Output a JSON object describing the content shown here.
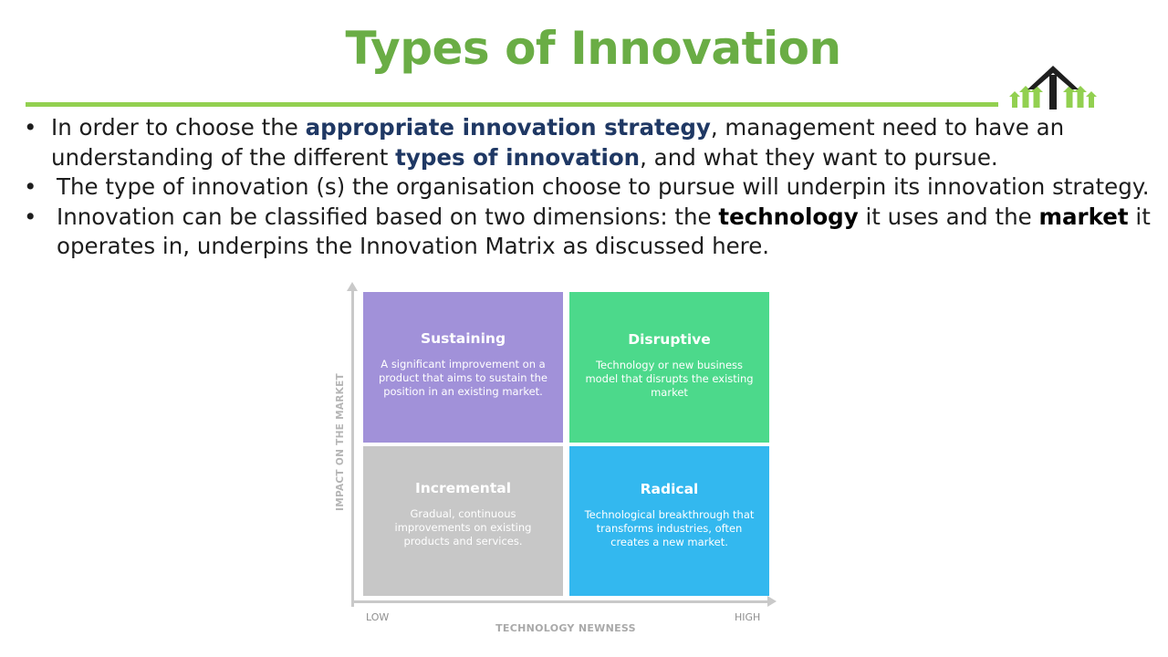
{
  "slide": {
    "title": "Types of Innovation"
  },
  "bullets": [
    {
      "bullet": "•",
      "parts": [
        {
          "text": "In order to choose the "
        },
        {
          "text": "appropriate innovation strategy",
          "style": "blue-bold"
        },
        {
          "text": ", management need to have an understanding of the different "
        },
        {
          "text": "types of innovation",
          "style": "blue-bold"
        },
        {
          "text": ", and what they want to pursue."
        }
      ]
    },
    {
      "bullet": "•",
      "parts": [
        {
          "text": "The type of innovation (s) the organisation choose to pursue will underpin its innovation strategy."
        }
      ]
    },
    {
      "bullet": "•",
      "parts": [
        {
          "text": "Innovation can be classified based on two dimensions: the "
        },
        {
          "text": "technology",
          "style": "black-bold"
        },
        {
          "text": " it uses and the "
        },
        {
          "text": "market",
          "style": "black-bold"
        },
        {
          "text": " it operates in,  underpins the Innovation Matrix as discussed here."
        }
      ]
    }
  ],
  "matrix": {
    "y_axis_label": "IMPACT ON THE MARKET",
    "x_axis_label": "TECHNOLOGY NEWNESS",
    "x_low": "LOW",
    "x_high": "HIGH",
    "cells": [
      {
        "title": "Sustaining",
        "description": "A significant improvement on a product that aims to sustain the position in an existing market.",
        "color": "#a191d9"
      },
      {
        "title": "Disruptive",
        "description": "Technology or new business model that disrupts the existing market",
        "color": "#4cd98b"
      },
      {
        "title": "Incremental",
        "description": "Gradual, continuous improvements on existing products and services.",
        "color": "#c7c7c7"
      },
      {
        "title": "Radical",
        "description": "Technological breakthrough that transforms industries, often creates a new market.",
        "color": "#33b8ef"
      }
    ]
  },
  "colors": {
    "title_green": "#6aad45",
    "rule_green": "#92d050",
    "emphasis_blue": "#1f3864"
  },
  "logo": {
    "icon": "growth-arrows-logo"
  }
}
